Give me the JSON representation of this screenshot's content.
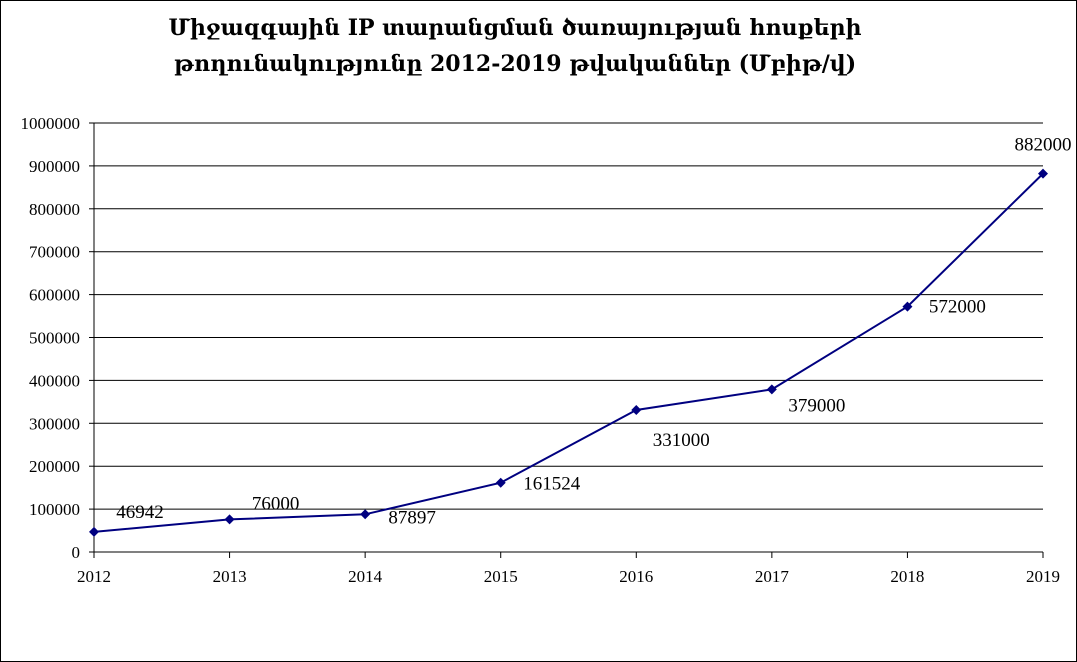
{
  "chart_data": {
    "type": "line",
    "title_line1": "Միջազգային IP տարանցման ծառայության հոսքերի",
    "title_line2": "թողունակությունը 2012-2019 թվականներ (Մբիթ/վ)",
    "categories": [
      "2012",
      "2013",
      "2014",
      "2015",
      "2016",
      "2017",
      "2018",
      "2019"
    ],
    "values": [
      46942,
      76000,
      87897,
      161524,
      331000,
      379000,
      572000,
      882000
    ],
    "data_labels": [
      "46942",
      "76000",
      "87897",
      "161524",
      "331000",
      "379000",
      "572000",
      "882000"
    ],
    "y_ticks": [
      "0",
      "100000",
      "200000",
      "300000",
      "400000",
      "500000",
      "600000",
      "700000",
      "800000",
      "900000",
      "1000000"
    ],
    "ylim": [
      0,
      1000000
    ],
    "grid": true,
    "legend": "none",
    "line_color": "#000080"
  }
}
